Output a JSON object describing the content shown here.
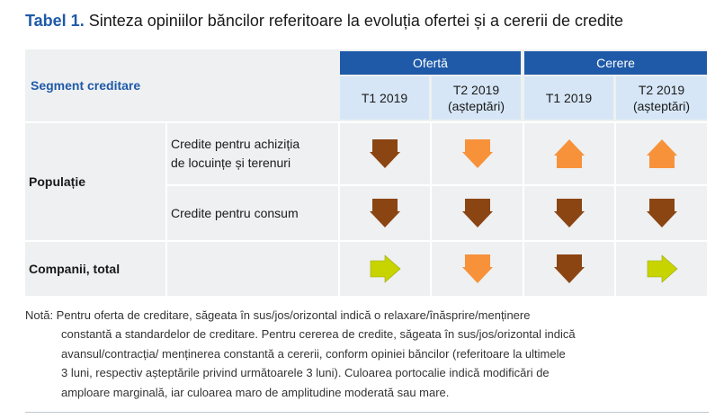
{
  "title": {
    "label": "Tabel 1.",
    "text": "Sinteza opiniilor băncilor referitoare la evoluția ofertei și a cererii de credite"
  },
  "table": {
    "segment_header": "Segment creditare",
    "groups": [
      "Ofertă",
      "Cerere"
    ],
    "periods": [
      "T1 2019",
      "T2 2019\n(așteptări)",
      "T1 2019",
      "T2 2019\n(așteptări)"
    ],
    "rows": {
      "populatie": {
        "label": "Populație",
        "sub": [
          {
            "label": "Credite pentru achiziția\nde locuințe și terenuri",
            "arrows": [
              "down-brown",
              "down-orange",
              "up-orange",
              "up-orange"
            ]
          },
          {
            "label": "Credite pentru consum",
            "arrows": [
              "down-brown",
              "down-brown",
              "down-brown",
              "down-brown"
            ]
          }
        ]
      },
      "companii": {
        "label": "Companii, total",
        "arrows": [
          "right-green",
          "down-orange",
          "down-brown",
          "right-green"
        ]
      }
    }
  },
  "colors": {
    "brown": "#8b4513",
    "orange": "#f7923a",
    "green": "#c8d400",
    "header_blue": "#1f5aa8",
    "subheader_blue": "#d6e6f6"
  },
  "note": [
    "Notă: Pentru oferta de creditare, săgeata în sus/jos/orizontal indică o relaxare/înăsprire/menținere",
    "constantă a  standardelor de creditare. Pentru cererea de credite, săgeata în sus/jos/orizontal indică",
    "avansul/contracția/ menținerea constantă a cererii, conform opiniei băncilor (referitoare la ultimele",
    "3 luni, respectiv așteptările privind următoarele 3 luni). Culoarea portocalie indică modificări de",
    "amploare marginală, iar culoarea maro de amplitudine moderată sau mare."
  ]
}
